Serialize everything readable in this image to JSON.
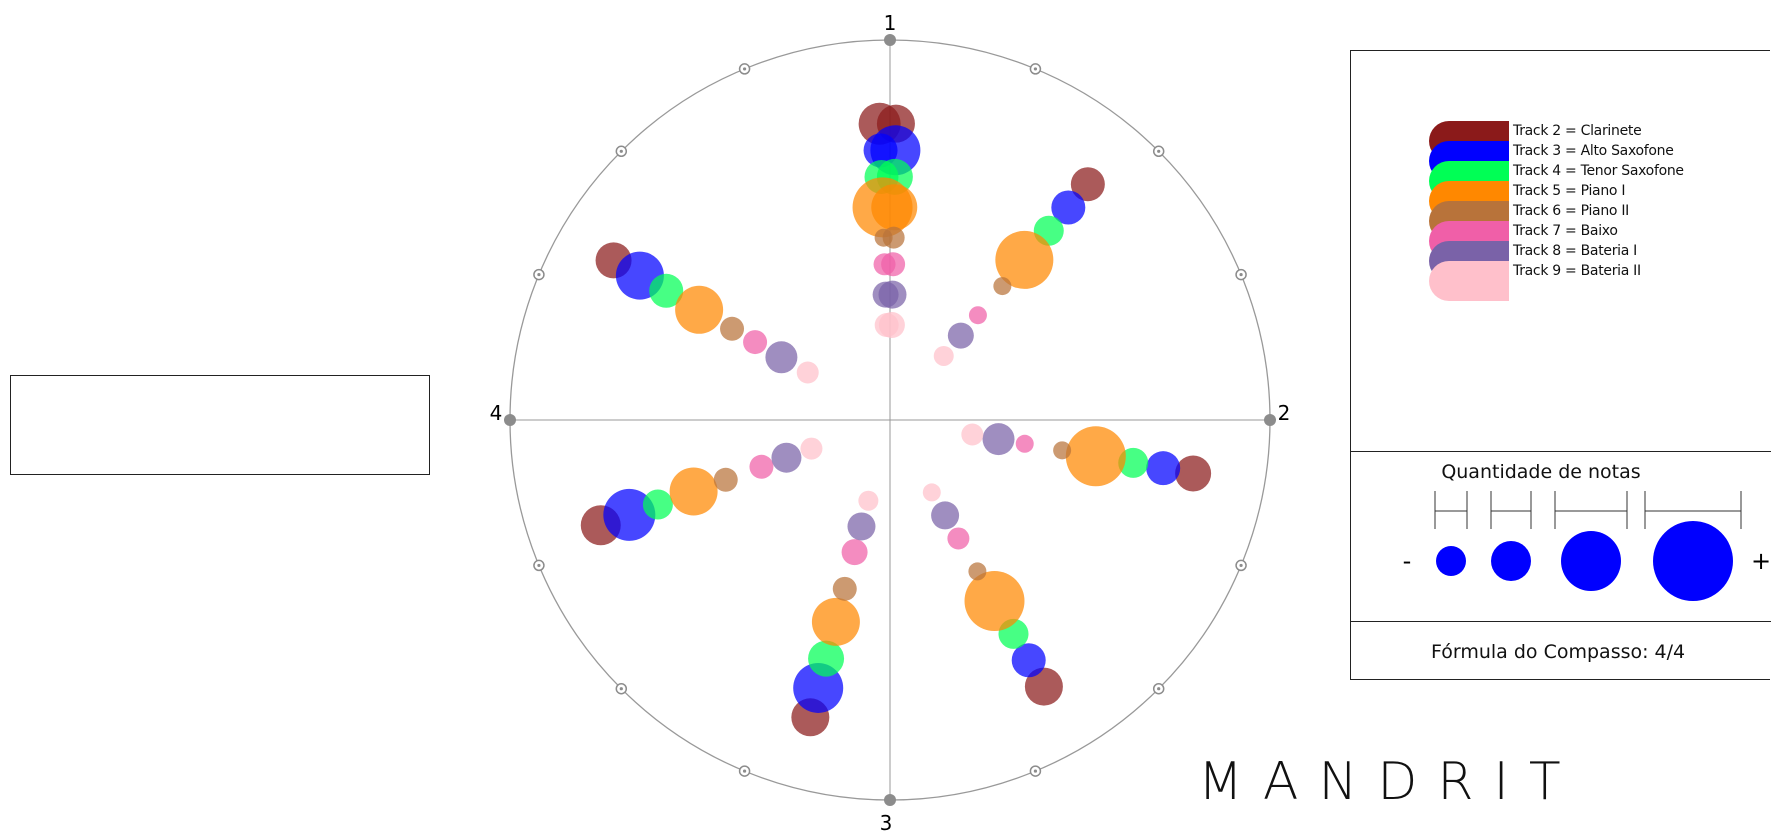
{
  "colors": {
    "track2": "#8b1a1a",
    "track3": "#0000ff",
    "track4": "#00ff55",
    "track5": "#ff8800",
    "track6": "#b8733a",
    "track7": "#f05fa8",
    "track8": "#7a62a8",
    "track9": "#ffc0cb",
    "axis": "#999999",
    "scale_dot": "#0000ff"
  },
  "axes": {
    "top": "1",
    "right": "2",
    "bottom": "3",
    "left": "4"
  },
  "legend": [
    {
      "key": "track2",
      "label": "Track 2 = Clarinete"
    },
    {
      "key": "track3",
      "label": "Track 3 = Alto Saxofone"
    },
    {
      "key": "track4",
      "label": "Track 4 =  Tenor Saxofone"
    },
    {
      "key": "track5",
      "label": "Track 5 = Piano I"
    },
    {
      "key": "track6",
      "label": "Track 6 = Piano II"
    },
    {
      "key": "track7",
      "label": "Track 7 = Baixo"
    },
    {
      "key": "track8",
      "label": "Track 8 = Bateria I"
    },
    {
      "key": "track9",
      "label": "Track 9 = Bateria II"
    }
  ],
  "notes_scale": {
    "title": "Quantidade de notas",
    "minus": "-",
    "plus": "+"
  },
  "time_signature": "Fórmula do Compasso: 4/4",
  "brand": "MANDRIT",
  "rays": [
    {
      "dots": [
        {
          "t": "track2",
          "r": 0.78,
          "s": 21
        },
        {
          "t": "track2",
          "r": 0.78,
          "s": 19
        },
        {
          "t": "track3",
          "r": 0.71,
          "s": 17
        },
        {
          "t": "track3",
          "r": 0.71,
          "s": 25
        },
        {
          "t": "track4",
          "r": 0.64,
          "s": 17
        },
        {
          "t": "track4",
          "r": 0.64,
          "s": 18
        },
        {
          "t": "track5",
          "r": 0.56,
          "s": 30
        },
        {
          "t": "track5",
          "r": 0.56,
          "s": 23
        },
        {
          "t": "track6",
          "r": 0.48,
          "s": 9
        },
        {
          "t": "track6",
          "r": 0.48,
          "s": 11
        },
        {
          "t": "track7",
          "r": 0.41,
          "s": 11
        },
        {
          "t": "track7",
          "r": 0.41,
          "s": 12
        },
        {
          "t": "track8",
          "r": 0.33,
          "s": 13
        },
        {
          "t": "track8",
          "r": 0.33,
          "s": 14
        },
        {
          "t": "track9",
          "r": 0.25,
          "s": 12
        },
        {
          "t": "track9",
          "r": 0.25,
          "s": 13
        }
      ]
    },
    {
      "dots": [
        {
          "t": "track2",
          "r": 0.81,
          "s": 17
        },
        {
          "t": "track3",
          "r": 0.73,
          "s": 17
        },
        {
          "t": "track4",
          "r": 0.65,
          "s": 15
        },
        {
          "t": "track5",
          "r": 0.55,
          "s": 29
        },
        {
          "t": "track6",
          "r": 0.46,
          "s": 9
        },
        {
          "t": "track7",
          "r": 0.36,
          "s": 9
        },
        {
          "t": "track8",
          "r": 0.29,
          "s": 13
        },
        {
          "t": "track9",
          "r": 0.22,
          "s": 10
        }
      ]
    },
    {
      "dots": [
        {
          "t": "track2",
          "r": 0.84,
          "s": 18
        },
        {
          "t": "track3",
          "r": 0.76,
          "s": 24
        },
        {
          "t": "track4",
          "r": 0.68,
          "s": 17
        },
        {
          "t": "track5",
          "r": 0.58,
          "s": 24
        },
        {
          "t": "track6",
          "r": 0.48,
          "s": 12
        },
        {
          "t": "track7",
          "r": 0.41,
          "s": 12
        },
        {
          "t": "track8",
          "r": 0.33,
          "s": 16
        },
        {
          "t": "track9",
          "r": 0.25,
          "s": 11
        }
      ]
    },
    {
      "dots": [
        {
          "t": "track2",
          "r": 0.81,
          "s": 18
        },
        {
          "t": "track3",
          "r": 0.73,
          "s": 17
        },
        {
          "t": "track4",
          "r": 0.65,
          "s": 15
        },
        {
          "t": "track5",
          "r": 0.55,
          "s": 30
        },
        {
          "t": "track6",
          "r": 0.46,
          "s": 9
        },
        {
          "t": "track7",
          "r": 0.36,
          "s": 9
        },
        {
          "t": "track8",
          "r": 0.29,
          "s": 16
        },
        {
          "t": "track9",
          "r": 0.22,
          "s": 11
        }
      ]
    },
    {
      "dots": [
        {
          "t": "track2",
          "r": 0.81,
          "s": 20
        },
        {
          "t": "track3",
          "r": 0.73,
          "s": 26
        },
        {
          "t": "track4",
          "r": 0.65,
          "s": 15
        },
        {
          "t": "track5",
          "r": 0.55,
          "s": 24
        },
        {
          "t": "track6",
          "r": 0.46,
          "s": 12
        },
        {
          "t": "track7",
          "r": 0.36,
          "s": 12
        },
        {
          "t": "track8",
          "r": 0.29,
          "s": 15
        },
        {
          "t": "track9",
          "r": 0.22,
          "s": 11
        }
      ]
    },
    {
      "dots": [
        {
          "t": "track2",
          "r": 0.81,
          "s": 19
        },
        {
          "t": "track3",
          "r": 0.73,
          "s": 17
        },
        {
          "t": "track4",
          "r": 0.65,
          "s": 15
        },
        {
          "t": "track5",
          "r": 0.55,
          "s": 30
        },
        {
          "t": "track6",
          "r": 0.46,
          "s": 9
        },
        {
          "t": "track7",
          "r": 0.36,
          "s": 11
        },
        {
          "t": "track8",
          "r": 0.29,
          "s": 14
        },
        {
          "t": "track9",
          "r": 0.22,
          "s": 9
        }
      ]
    },
    {
      "dots": [
        {
          "t": "track2",
          "r": 0.81,
          "s": 19
        },
        {
          "t": "track3",
          "r": 0.73,
          "s": 25
        },
        {
          "t": "track4",
          "r": 0.65,
          "s": 18
        },
        {
          "t": "track5",
          "r": 0.55,
          "s": 24
        },
        {
          "t": "track6",
          "r": 0.46,
          "s": 12
        },
        {
          "t": "track7",
          "r": 0.36,
          "s": 13
        },
        {
          "t": "track8",
          "r": 0.29,
          "s": 14
        },
        {
          "t": "track9",
          "r": 0.22,
          "s": 10
        }
      ]
    }
  ],
  "scale_dots": [
    15,
    20,
    30,
    40
  ]
}
